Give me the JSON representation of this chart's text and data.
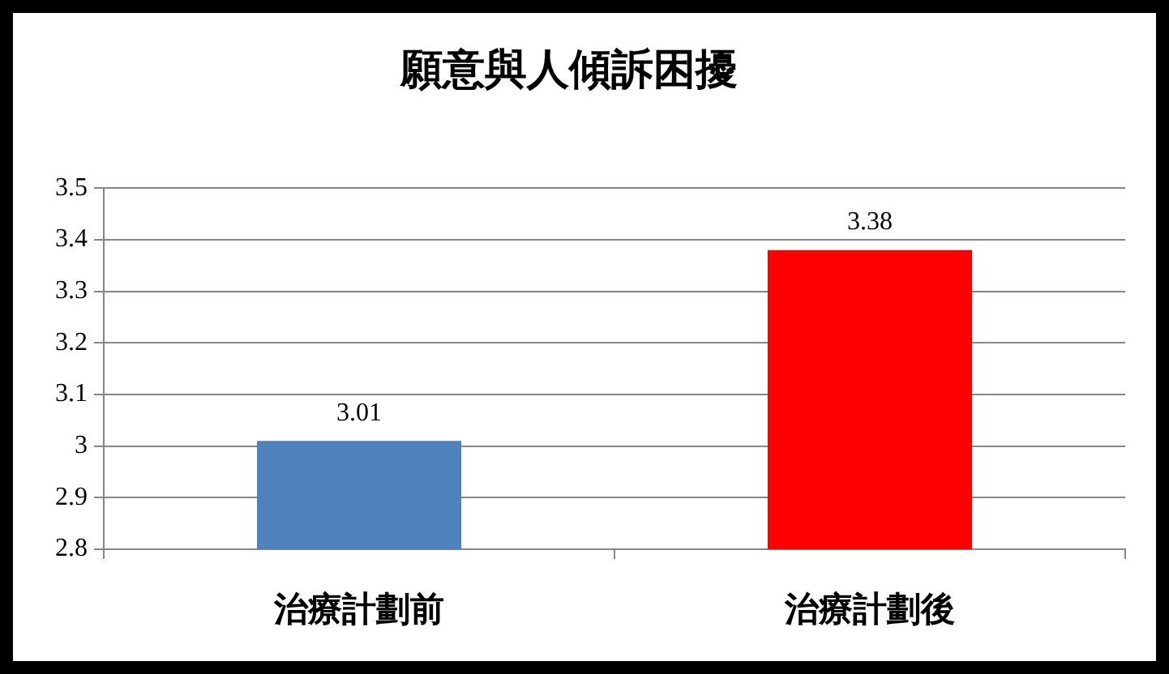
{
  "chart_data": {
    "type": "bar",
    "title": "願意與人傾訴困擾",
    "categories": [
      "治療計劃前",
      "治療計劃後"
    ],
    "values": [
      3.01,
      3.38
    ],
    "colors": [
      "#4f81bd",
      "#ff0000"
    ],
    "ylim": [
      2.8,
      3.5
    ],
    "yticks": [
      2.8,
      2.9,
      3,
      3.1,
      3.2,
      3.3,
      3.4,
      3.5
    ],
    "grid": "y",
    "data_labels": true,
    "legend": false
  }
}
